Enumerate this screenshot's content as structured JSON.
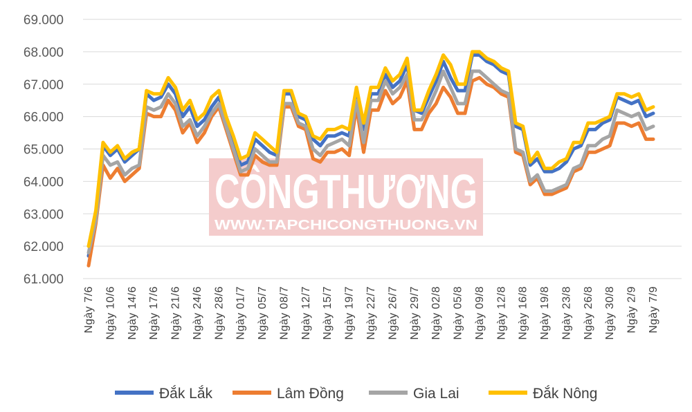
{
  "watermark": {
    "brand": "CÔNGTHƯƠNG",
    "url": "WWW.TAPCHICONGTHUONG.VN",
    "color": "#f4cccc"
  },
  "chart_data": {
    "type": "line",
    "title": "",
    "xlabel": "",
    "ylabel": "",
    "ylim": [
      61000,
      69000
    ],
    "yticks": [
      61000,
      62000,
      63000,
      64000,
      65000,
      66000,
      67000,
      68000,
      69000
    ],
    "ytick_labels": [
      "61.000",
      "62.000",
      "63.000",
      "64.000",
      "65.000",
      "66.000",
      "67.000",
      "68.000",
      "69.000"
    ],
    "grid": true,
    "legend_position": "bottom",
    "x_tick_labels": [
      {
        "index": 0,
        "label": "Ngày 7/6"
      },
      {
        "index": 3,
        "label": "Ngày 10/6"
      },
      {
        "index": 6,
        "label": "Ngày 14/6"
      },
      {
        "index": 9,
        "label": "Ngày 17/6"
      },
      {
        "index": 12,
        "label": "Ngày 21/6"
      },
      {
        "index": 15,
        "label": "Ngày 24/6"
      },
      {
        "index": 18,
        "label": "Ngày 28/6"
      },
      {
        "index": 21,
        "label": "Ngày 01/7"
      },
      {
        "index": 24,
        "label": "Ngày 05/7"
      },
      {
        "index": 27,
        "label": "Ngày 08/7"
      },
      {
        "index": 30,
        "label": "Ngày 12/7"
      },
      {
        "index": 33,
        "label": "Ngày 15/7"
      },
      {
        "index": 36,
        "label": "Ngày 19/7"
      },
      {
        "index": 39,
        "label": "Ngày 22/7"
      },
      {
        "index": 42,
        "label": "Ngày 26/7"
      },
      {
        "index": 45,
        "label": "Ngày 29/7"
      },
      {
        "index": 48,
        "label": "Ngày 02/8"
      },
      {
        "index": 51,
        "label": "Ngày 05/8"
      },
      {
        "index": 54,
        "label": "Ngày 09/8"
      },
      {
        "index": 57,
        "label": "Ngày 12/8"
      },
      {
        "index": 60,
        "label": "Ngày 16/8"
      },
      {
        "index": 63,
        "label": "Ngày 19/8"
      },
      {
        "index": 66,
        "label": "Ngày 23/8"
      },
      {
        "index": 69,
        "label": "Ngày 26/8"
      },
      {
        "index": 72,
        "label": "Ngày 30/8"
      },
      {
        "index": 75,
        "label": "Ngày 2/9"
      },
      {
        "index": 78,
        "label": "Ngày 7/9"
      }
    ],
    "series": [
      {
        "name": "Đắk Lắk",
        "color": "#4472c4",
        "values": [
          61700,
          62900,
          65100,
          64800,
          65000,
          64600,
          64800,
          65000,
          66700,
          66500,
          66600,
          67000,
          66700,
          66000,
          66300,
          65700,
          65900,
          66300,
          66600,
          65900,
          65200,
          64500,
          64600,
          65300,
          65100,
          64900,
          64800,
          66700,
          66700,
          66000,
          65900,
          65300,
          65100,
          65400,
          65400,
          65500,
          65400,
          66700,
          65600,
          66700,
          66700,
          67300,
          66900,
          67100,
          67600,
          66200,
          66100,
          66600,
          67100,
          67700,
          67200,
          66800,
          66800,
          67900,
          67900,
          67700,
          67600,
          67400,
          67300,
          65700,
          65600,
          64500,
          64700,
          64300,
          64300,
          64400,
          64600,
          65000,
          65100,
          65600,
          65600,
          65800,
          65900,
          66600,
          66500,
          66400,
          66500,
          66000,
          66100
        ]
      },
      {
        "name": "Lâm Đồng",
        "color": "#ed7d31",
        "values": [
          61400,
          62700,
          64500,
          64100,
          64400,
          64000,
          64200,
          64400,
          66100,
          66000,
          66000,
          66500,
          66200,
          65500,
          65800,
          65200,
          65500,
          66000,
          66300,
          65600,
          64900,
          64200,
          64200,
          64800,
          64600,
          64500,
          64500,
          66300,
          66300,
          65700,
          65600,
          64700,
          64600,
          64900,
          64900,
          65000,
          64800,
          66300,
          64900,
          66200,
          66200,
          66800,
          66400,
          66600,
          67100,
          65600,
          65600,
          66100,
          66400,
          66900,
          66600,
          66100,
          66100,
          67100,
          67200,
          67000,
          66900,
          66700,
          66600,
          64900,
          64800,
          63900,
          64100,
          63600,
          63600,
          63700,
          63800,
          64300,
          64400,
          64900,
          64900,
          65000,
          65100,
          65800,
          65800,
          65700,
          65800,
          65300,
          65300
        ]
      },
      {
        "name": "Gia Lai",
        "color": "#a5a5a5",
        "values": [
          61800,
          62800,
          64800,
          64500,
          64600,
          64200,
          64400,
          64500,
          66300,
          66200,
          66300,
          66700,
          66400,
          65700,
          65900,
          65400,
          65700,
          66100,
          66400,
          65700,
          65000,
          64300,
          64400,
          65000,
          64800,
          64600,
          64600,
          66400,
          66400,
          65800,
          65700,
          65000,
          64800,
          65100,
          65200,
          65300,
          65100,
          66500,
          65200,
          66500,
          66500,
          67100,
          66700,
          66900,
          67300,
          65900,
          65900,
          66300,
          66800,
          67400,
          66900,
          66400,
          66400,
          67400,
          67400,
          67200,
          67000,
          66800,
          66700,
          65000,
          64900,
          64000,
          64200,
          63700,
          63700,
          63800,
          63900,
          64400,
          64500,
          65100,
          65100,
          65300,
          65400,
          66200,
          66100,
          66000,
          66100,
          65600,
          65700
        ]
      },
      {
        "name": "Đắk Nông",
        "color": "#ffc000",
        "values": [
          62000,
          63100,
          65200,
          64900,
          65100,
          64700,
          64900,
          65000,
          66800,
          66700,
          66700,
          67200,
          66900,
          66200,
          66500,
          65900,
          66100,
          66600,
          66800,
          66000,
          65400,
          64700,
          64800,
          65500,
          65300,
          65100,
          64900,
          66800,
          66800,
          66100,
          66000,
          65400,
          65300,
          65600,
          65600,
          65700,
          65600,
          66900,
          65800,
          66900,
          66900,
          67500,
          67100,
          67300,
          67800,
          66200,
          66200,
          66800,
          67300,
          67900,
          67600,
          67000,
          67000,
          68000,
          68000,
          67800,
          67700,
          67500,
          67400,
          65800,
          65700,
          64600,
          64900,
          64400,
          64400,
          64600,
          64700,
          65200,
          65200,
          65800,
          65800,
          65900,
          66000,
          66700,
          66700,
          66600,
          66700,
          66200,
          66300
        ]
      }
    ]
  }
}
